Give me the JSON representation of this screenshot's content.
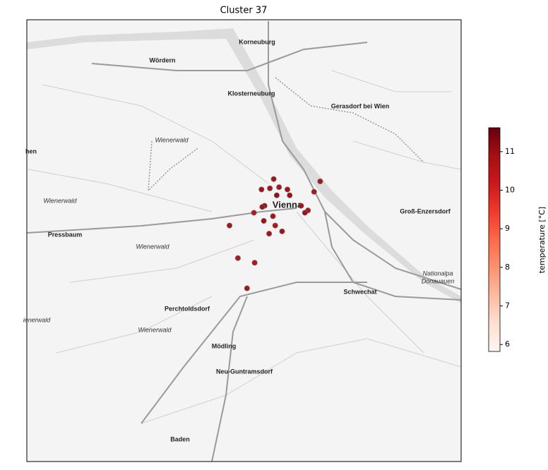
{
  "chart_data": {
    "type": "scatter",
    "title": "Cluster 37",
    "x": [
      16.354,
      16.338,
      16.349,
      16.361,
      16.372,
      16.358,
      16.375,
      16.415,
      16.407,
      16.342,
      16.339,
      16.328,
      16.353,
      16.341,
      16.356,
      16.365,
      16.348,
      16.39,
      16.399,
      16.395,
      16.296,
      16.307,
      16.329,
      16.319
    ],
    "y": [
      48.233,
      48.224,
      48.225,
      48.226,
      48.224,
      48.219,
      48.219,
      48.231,
      48.222,
      48.21,
      48.209,
      48.204,
      48.201,
      48.197,
      48.193,
      48.188,
      48.186,
      48.21,
      48.206,
      48.204,
      48.193,
      48.165,
      48.161,
      48.139
    ],
    "values": [
      10.8,
      10.9,
      10.7,
      10.6,
      10.8,
      11.0,
      10.9,
      10.7,
      10.6,
      11.0,
      10.8,
      10.5,
      10.7,
      10.9,
      10.6,
      10.8,
      10.7,
      10.8,
      10.6,
      10.9,
      10.7,
      10.5,
      10.6,
      10.8
    ],
    "xlim": [
      16.03,
      16.6
    ],
    "ylim": [
      47.99,
      48.37
    ],
    "colormap": "Reds",
    "clim": [
      5.82,
      11.62
    ],
    "cticks": [
      6,
      7,
      8,
      9,
      10,
      11
    ],
    "colorbar_label": "temperature [°C]"
  },
  "map_labels": [
    "Korneuburg",
    "Wördern",
    "Klosterneuburg",
    "Gerasdorf bei Wien",
    "Wienerwald",
    "hen",
    "Wienerwald",
    "Vienna",
    "Groß-Enzersdorf",
    "Pressbaum",
    "Wienerwald",
    "Nationalpa",
    "Donauauen",
    "Schwechat",
    "Perchtoldsdorf",
    "ienerwald",
    "Wienerwald",
    "Mödling",
    "Neu-Guntramsdorf",
    "Baden"
  ]
}
